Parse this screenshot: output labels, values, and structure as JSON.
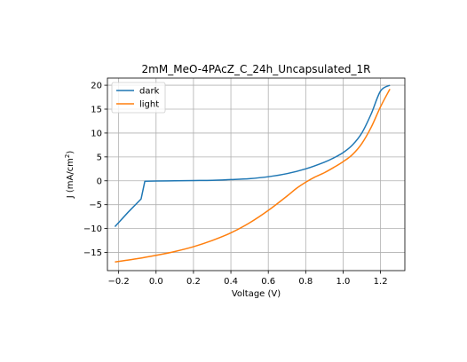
{
  "chart_data": {
    "type": "line",
    "title": "2mM_MeO-4PAcZ_C_24h_Uncapsulated_1R",
    "xlabel": "Voltage (V)",
    "ylabel": {
      "prefix": "J (mA/cm",
      "sup": "2",
      "suffix": ")"
    },
    "xlim": [
      -0.26,
      1.33
    ],
    "ylim": [
      -18.8,
      21.5
    ],
    "xticks": [
      -0.2,
      0.0,
      0.2,
      0.4,
      0.6,
      0.8,
      1.0,
      1.2
    ],
    "xtick_labels": [
      "−0.2",
      "0.0",
      "0.2",
      "0.4",
      "0.6",
      "0.8",
      "1.0",
      "1.2"
    ],
    "yticks": [
      -15,
      -10,
      -5,
      0,
      5,
      10,
      15,
      20
    ],
    "ytick_labels": [
      "−15",
      "−10",
      "−5",
      "0",
      "5",
      "10",
      "15",
      "20"
    ],
    "grid": true,
    "legend": "upper-left",
    "series": [
      {
        "name": "dark",
        "color": "#1f77b4",
        "x": [
          -0.22,
          -0.15,
          -0.08,
          -0.06,
          0.0,
          0.1,
          0.2,
          0.3,
          0.4,
          0.5,
          0.6,
          0.7,
          0.8,
          0.9,
          0.95,
          1.0,
          1.05,
          1.1,
          1.15,
          1.2,
          1.25
        ],
        "y": [
          -9.6,
          -6.6,
          -3.8,
          -0.1,
          -0.05,
          0.0,
          0.05,
          0.1,
          0.25,
          0.45,
          0.85,
          1.5,
          2.5,
          3.9,
          4.8,
          5.9,
          7.5,
          10.0,
          14.0,
          18.8,
          20.0
        ]
      },
      {
        "name": "light",
        "color": "#ff7f0e",
        "x": [
          -0.22,
          -0.1,
          0.0,
          0.1,
          0.2,
          0.3,
          0.4,
          0.5,
          0.6,
          0.7,
          0.75,
          0.8,
          0.85,
          0.9,
          0.95,
          1.0,
          1.05,
          1.1,
          1.15,
          1.2,
          1.25
        ],
        "y": [
          -17.0,
          -16.3,
          -15.6,
          -14.8,
          -13.8,
          -12.5,
          -10.9,
          -8.8,
          -6.2,
          -3.2,
          -1.6,
          -0.3,
          0.8,
          1.7,
          2.8,
          4.0,
          5.5,
          7.8,
          11.2,
          15.5,
          19.2
        ]
      }
    ]
  }
}
